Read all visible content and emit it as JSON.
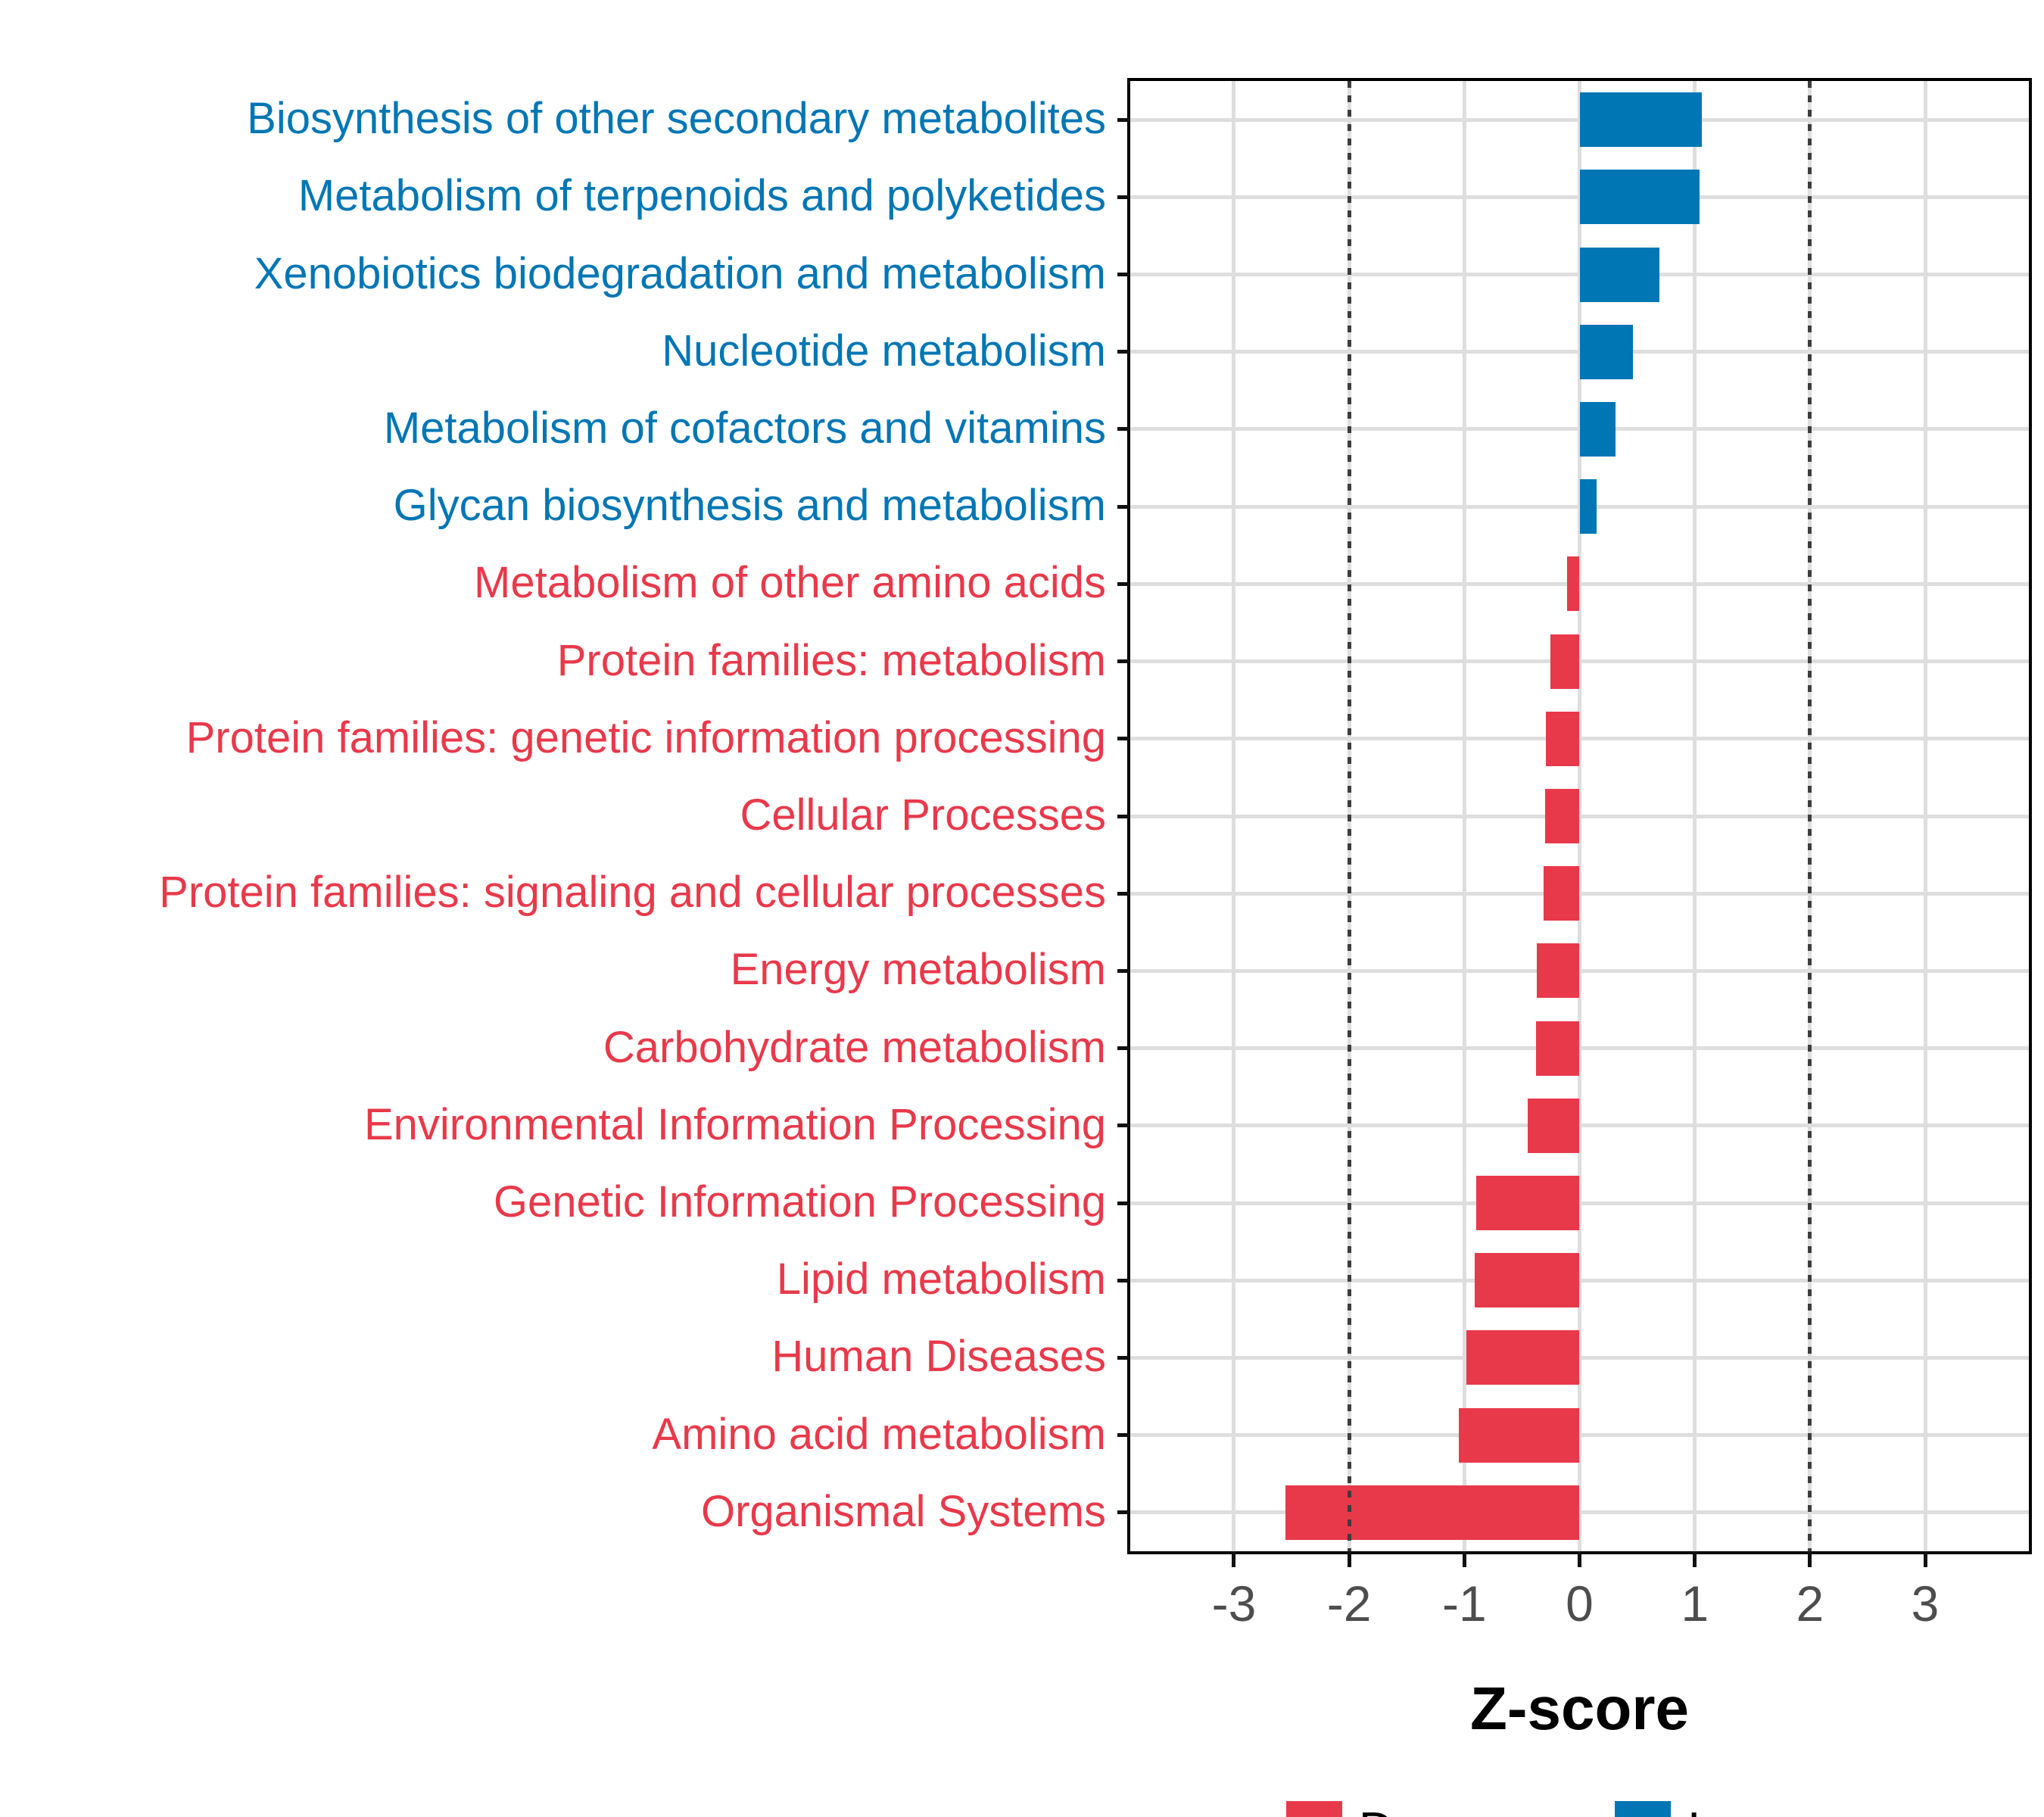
{
  "chart_data": {
    "type": "bar",
    "orientation": "horizontal",
    "xlabel": "Z-score",
    "xlim": [
      -3.9,
      3.9
    ],
    "xticks": [
      -3,
      -2,
      -1,
      0,
      1,
      2,
      3
    ],
    "reference_lines": [
      -2,
      2
    ],
    "grid": "on",
    "legend_position": "bottom",
    "categories": [
      "Biosynthesis of other secondary metabolites",
      "Metabolism of terpenoids and polyketides",
      "Xenobiotics biodegradation and metabolism",
      "Nucleotide metabolism",
      "Metabolism of cofactors and vitamins",
      "Glycan biosynthesis and metabolism",
      "Metabolism of other amino acids",
      "Protein families: metabolism",
      "Protein families: genetic information processing",
      "Cellular Processes",
      "Protein families: signaling and cellular processes",
      "Energy metabolism",
      "Carbohydrate metabolism",
      "Environmental Information Processing",
      "Genetic Information Processing",
      "Lipid metabolism",
      "Human Diseases",
      "Amino acid metabolism",
      "Organismal Systems"
    ],
    "values": [
      1.06,
      1.04,
      0.69,
      0.46,
      0.31,
      0.15,
      -0.11,
      -0.25,
      -0.29,
      -0.3,
      -0.31,
      -0.37,
      -0.38,
      -0.45,
      -0.9,
      -0.91,
      -0.98,
      -1.05,
      -2.55
    ],
    "groups": [
      "Increase",
      "Increase",
      "Increase",
      "Increase",
      "Increase",
      "Increase",
      "Decrease",
      "Decrease",
      "Decrease",
      "Decrease",
      "Decrease",
      "Decrease",
      "Decrease",
      "Decrease",
      "Decrease",
      "Decrease",
      "Decrease",
      "Decrease",
      "Decrease"
    ],
    "legend": [
      {
        "label": "Decrease",
        "color": "#e8394a"
      },
      {
        "label": "Increase",
        "color": "#0076b4"
      }
    ],
    "colors": {
      "increase": "#0076b4",
      "decrease": "#e8394a",
      "gridline": "#dedede",
      "reference_line": "#3d3d3d",
      "axis_text": "#4d4d4d",
      "panel_border": "#000000"
    }
  }
}
